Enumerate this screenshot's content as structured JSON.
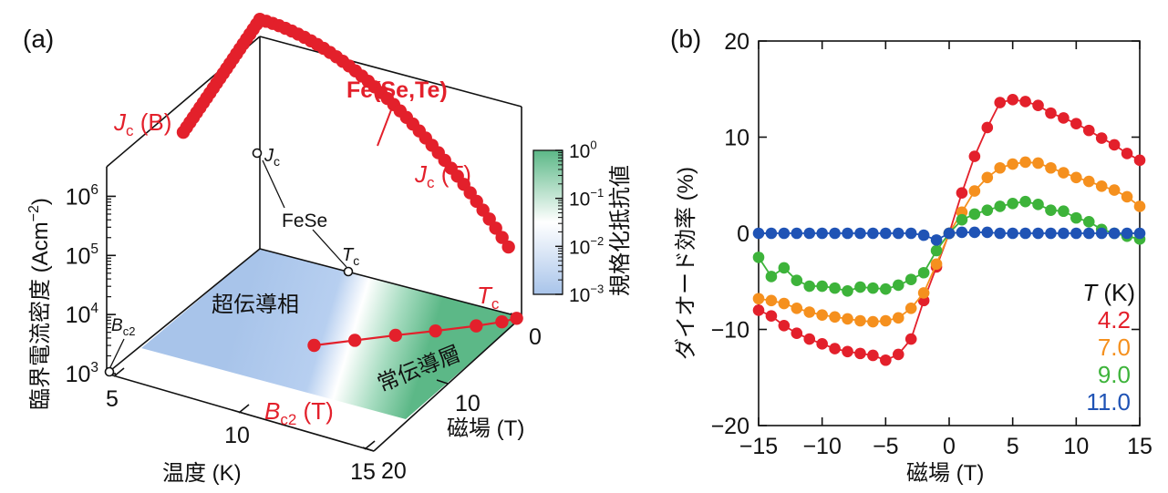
{
  "colors": {
    "red": "#e3202b",
    "orange": "#f5901e",
    "green": "#3db33a",
    "blue": "#1f53b5",
    "sc_region": "#a8c4ea",
    "normal_region": "#5cb887"
  },
  "chart_data": [
    {
      "type": "scatter3d",
      "panel_label": "(a)",
      "z_axis_label": "臨界電流密度 (Acm",
      "z_axis_label_sup": "−2",
      "z_axis_label_close": ")",
      "z_ticks": [
        {
          "base": "10",
          "exp": "3",
          "value": 1000
        },
        {
          "base": "10",
          "exp": "4",
          "value": 10000
        },
        {
          "base": "10",
          "exp": "5",
          "value": 100000
        },
        {
          "base": "10",
          "exp": "6",
          "value": 1000000
        }
      ],
      "x_axis_label": "温度 (K)",
      "x_ticks": [
        "5",
        "10",
        "15"
      ],
      "y_axis_label": "磁場 (T)",
      "y_ticks": [
        "0",
        "10",
        "20"
      ],
      "region_labels": {
        "superconducting": "超伝導相",
        "normal": "常伝導層"
      },
      "colorbar": {
        "label": "規格化抵抗値",
        "ticks": [
          {
            "base": "10",
            "exp": "0"
          },
          {
            "base": "10",
            "exp": "−1"
          },
          {
            "base": "10",
            "exp": "−2"
          },
          {
            "base": "10",
            "exp": "−3"
          }
        ]
      },
      "annotations": {
        "material": "Fe(Se,Te)",
        "reference": "FeSe",
        "jc_b": {
          "main": "J",
          "sub": "c",
          "arg": " (B)"
        },
        "jc_t": {
          "main": "J",
          "sub": "c",
          "arg": " (T)"
        },
        "tc": {
          "main": "T",
          "sub": "c"
        },
        "bc2_t": {
          "main": "B",
          "sub": "c2",
          "arg": " (T)"
        },
        "fese_jc": {
          "main": "J",
          "sub": "c"
        },
        "fese_tc": {
          "main": "T",
          "sub": "c"
        },
        "fese_bc2": {
          "main": "B",
          "sub": "c2"
        }
      },
      "series": [
        {
          "name": "Jc(B) at T=5 K",
          "T": 5,
          "B_range": [
            0,
            10
          ],
          "log10_Jc_range": [
            6.78,
            5.95
          ],
          "points": 24
        },
        {
          "name": "Jc(T) at B=0",
          "B": 0,
          "T_range": [
            5,
            14.5
          ],
          "log10_Jc_range": [
            6.78,
            4.1
          ],
          "points": 40
        },
        {
          "name": "Bc2(T)",
          "T": [
            10,
            11,
            12,
            13,
            14,
            14.6,
            14.9
          ],
          "B": [
            10.0,
            8.1,
            6.2,
            4.4,
            2.5,
            1.2,
            0.3
          ]
        }
      ]
    },
    {
      "type": "line",
      "panel_label": "(b)",
      "title": "",
      "xlabel": "磁場 (T)",
      "ylabel": "ダイオード効率 (%)",
      "xlim": [
        -15,
        15
      ],
      "ylim": [
        -20,
        20
      ],
      "x_ticks": [
        "−15",
        "−10",
        "−5",
        "0",
        "5",
        "10",
        "15"
      ],
      "y_ticks": [
        "−20",
        "−10",
        "0",
        "10",
        "20"
      ],
      "legend_title": "T (K)",
      "legend_title_main": "T",
      "legend_title_unit": " (K)",
      "series": [
        {
          "name": "4.2",
          "x": [
            -15,
            -14,
            -13,
            -12,
            -11,
            -10,
            -9,
            -8,
            -7,
            -6,
            -5,
            -4,
            -3,
            -2,
            -1,
            0,
            1,
            2,
            3,
            4,
            5,
            6,
            7,
            8,
            9,
            10,
            11,
            12,
            13,
            14,
            15
          ],
          "y": [
            -8.0,
            -8.6,
            -9.6,
            -10.4,
            -11.0,
            -11.5,
            -12.0,
            -12.3,
            -12.5,
            -12.7,
            -13.2,
            -12.6,
            -11.0,
            -7.0,
            -3.5,
            0.0,
            4.2,
            8.0,
            11.0,
            13.6,
            13.9,
            13.7,
            13.3,
            12.5,
            12.0,
            11.4,
            10.7,
            9.9,
            9.2,
            8.3,
            7.6
          ]
        },
        {
          "name": "7.0",
          "x": [
            -15,
            -14,
            -13,
            -12,
            -11,
            -10,
            -9,
            -8,
            -7,
            -6,
            -5,
            -4,
            -3,
            -2,
            -1,
            0,
            1,
            2,
            3,
            4,
            5,
            6,
            7,
            8,
            9,
            10,
            11,
            12,
            13,
            14,
            15
          ],
          "y": [
            -6.8,
            -7.0,
            -7.3,
            -7.8,
            -8.2,
            -8.5,
            -8.7,
            -8.9,
            -9.1,
            -9.2,
            -9.1,
            -8.8,
            -7.8,
            -6.2,
            -3.2,
            0.0,
            2.2,
            4.4,
            5.8,
            6.8,
            7.2,
            7.4,
            7.3,
            6.8,
            6.3,
            5.8,
            5.4,
            4.9,
            4.5,
            3.8,
            2.8
          ]
        },
        {
          "name": "9.0",
          "x": [
            -15,
            -14,
            -13,
            -12,
            -11,
            -10,
            -9,
            -8,
            -7,
            -6,
            -5,
            -4,
            -3,
            -2,
            -1,
            0,
            1,
            2,
            3,
            4,
            5,
            6,
            7,
            8,
            9,
            10,
            11,
            12,
            13,
            14,
            15
          ],
          "y": [
            -2.5,
            -4.5,
            -3.6,
            -4.9,
            -5.5,
            -5.5,
            -5.7,
            -6.0,
            -5.6,
            -5.7,
            -5.8,
            -5.4,
            -4.8,
            -4.1,
            -1.8,
            0.0,
            1.4,
            2.0,
            2.4,
            2.8,
            3.1,
            3.3,
            3.0,
            2.4,
            2.3,
            1.6,
            1.2,
            0.4,
            0.0,
            -0.3,
            -0.6
          ]
        },
        {
          "name": "11.0",
          "x": [
            -15,
            -14,
            -13,
            -12,
            -11,
            -10,
            -9,
            -8,
            -7,
            -6,
            -5,
            -4,
            -3,
            -2,
            -1,
            0,
            1,
            2,
            3,
            4,
            5,
            6,
            7,
            8,
            9,
            10,
            11,
            12,
            13,
            14,
            15
          ],
          "y": [
            0.0,
            0.0,
            0.0,
            0.0,
            0.0,
            0.0,
            0.0,
            0.0,
            0.0,
            0.0,
            0.0,
            0.0,
            0.0,
            -0.2,
            -0.7,
            0.0,
            0.1,
            0.1,
            0.1,
            0.0,
            0.0,
            0.0,
            0.0,
            0.0,
            0.0,
            0.0,
            0.0,
            0.0,
            0.0,
            0.0,
            0.0
          ]
        }
      ]
    }
  ]
}
